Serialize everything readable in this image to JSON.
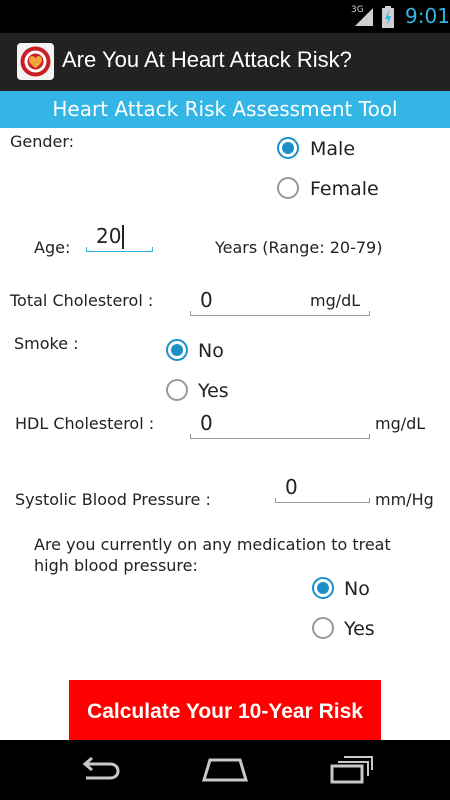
{
  "status_bar": {
    "network": "3G",
    "time": "9:01",
    "icons": [
      "signal-icon",
      "battery-charging-icon"
    ]
  },
  "app_bar": {
    "title": "Are You At Heart Attack Risk?",
    "icon": "heart-logo-icon"
  },
  "banner": {
    "title": "Heart Attack Risk Assessment Tool"
  },
  "form": {
    "gender": {
      "label": "Gender:",
      "options": [
        {
          "label": "Male",
          "checked": true
        },
        {
          "label": "Female",
          "checked": false
        }
      ]
    },
    "age": {
      "label": "Age:",
      "value": "20",
      "hint": "Years (Range: 20-79)"
    },
    "total_cholesterol": {
      "label": "Total Cholesterol :",
      "value": "0",
      "unit": "mg/dL"
    },
    "smoke": {
      "label": "Smoke :",
      "options": [
        {
          "label": "No",
          "checked": true
        },
        {
          "label": "Yes",
          "checked": false
        }
      ]
    },
    "hdl_cholesterol": {
      "label": "HDL Cholesterol :",
      "value": "0",
      "unit": "mg/dL"
    },
    "systolic_bp": {
      "label": "Systolic Blood Pressure :",
      "value": "0",
      "unit": "mm/Hg"
    },
    "medication": {
      "question": "Are you currently on any medication to treat high blood pressure:",
      "options": [
        {
          "label": "No",
          "checked": true
        },
        {
          "label": "Yes",
          "checked": false
        }
      ]
    },
    "submit_label": "Calculate Your 10-Year Risk"
  },
  "nav_bar": {
    "icons": [
      "back-icon",
      "home-icon",
      "recent-apps-icon"
    ]
  },
  "colors": {
    "accent": "#33b5e5",
    "radio": "#1e90c8",
    "button": "#ff0000",
    "action_bar": "#222222"
  }
}
